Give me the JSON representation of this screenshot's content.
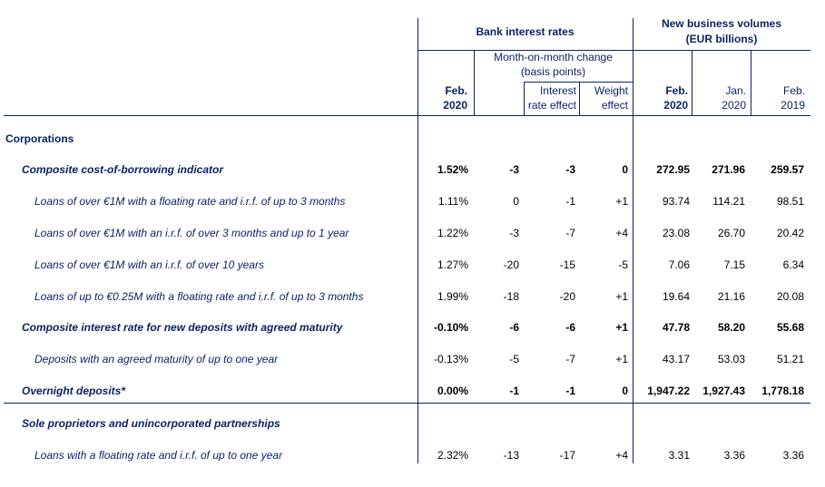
{
  "header": {
    "bank_interest_rates": "Bank interest rates",
    "new_business_volumes": "New business volumes",
    "volumes_unit": "(EUR billions)",
    "mom_change": "Month-on-month change",
    "mom_unit": "(basis points)",
    "interest_rate_effect_1": "Interest",
    "interest_rate_effect_2": "rate effect",
    "weight_effect_1": "Weight",
    "weight_effect_2": "effect",
    "col_rate_month": "Feb.",
    "col_rate_year": "2020",
    "col_vol1_month": "Feb.",
    "col_vol1_year": "2020",
    "col_vol2_month": "Jan.",
    "col_vol2_year": "2020",
    "col_vol3_month": "Feb.",
    "col_vol3_year": "2019"
  },
  "sections": {
    "corporations": "Corporations",
    "sole_proprietors": "Sole proprietors and unincorporated partnerships"
  },
  "rows": [
    {
      "label": "Composite cost-of-borrowing indicator",
      "rate": "1.52%",
      "mom": "-3",
      "ire": "-3",
      "we": "0",
      "v1": "272.95",
      "v2": "271.96",
      "v3": "259.57"
    },
    {
      "label": "Loans of over €1M with a floating rate and i.r.f. of up to 3 months",
      "rate": "1.11%",
      "mom": "0",
      "ire": "-1",
      "we": "+1",
      "v1": "93.74",
      "v2": "114.21",
      "v3": "98.51"
    },
    {
      "label": "Loans of over €1M with an i.r.f. of over 3 months and up to 1 year",
      "rate": "1.22%",
      "mom": "-3",
      "ire": "-7",
      "we": "+4",
      "v1": "23.08",
      "v2": "26.70",
      "v3": "20.42"
    },
    {
      "label": "Loans of over €1M with an i.r.f. of over 10 years",
      "rate": "1.27%",
      "mom": "-20",
      "ire": "-15",
      "we": "-5",
      "v1": "7.06",
      "v2": "7.15",
      "v3": "6.34"
    },
    {
      "label": "Loans of up to €0.25M with a floating rate and i.r.f. of up to 3 months",
      "rate": "1.99%",
      "mom": "-18",
      "ire": "-20",
      "we": "+1",
      "v1": "19.64",
      "v2": "21.16",
      "v3": "20.08"
    },
    {
      "label": "Composite interest rate for new deposits with agreed maturity",
      "rate": "-0.10%",
      "mom": "-6",
      "ire": "-6",
      "we": "+1",
      "v1": "47.78",
      "v2": "58.20",
      "v3": "55.68"
    },
    {
      "label": "Deposits with an agreed maturity of up to one year",
      "rate": "-0.13%",
      "mom": "-5",
      "ire": "-7",
      "we": "+1",
      "v1": "43.17",
      "v2": "53.03",
      "v3": "51.21"
    },
    {
      "label": "Overnight deposits*",
      "rate": "0.00%",
      "mom": "-1",
      "ire": "-1",
      "we": "0",
      "v1": "1,947.22",
      "v2": "1,927.43",
      "v3": "1,778.18"
    },
    {
      "label": "Loans with a floating rate and i.r.f. of up to one year",
      "rate": "2.32%",
      "mom": "-13",
      "ire": "-17",
      "we": "+4",
      "v1": "3.31",
      "v2": "3.36",
      "v3": "3.36"
    }
  ]
}
